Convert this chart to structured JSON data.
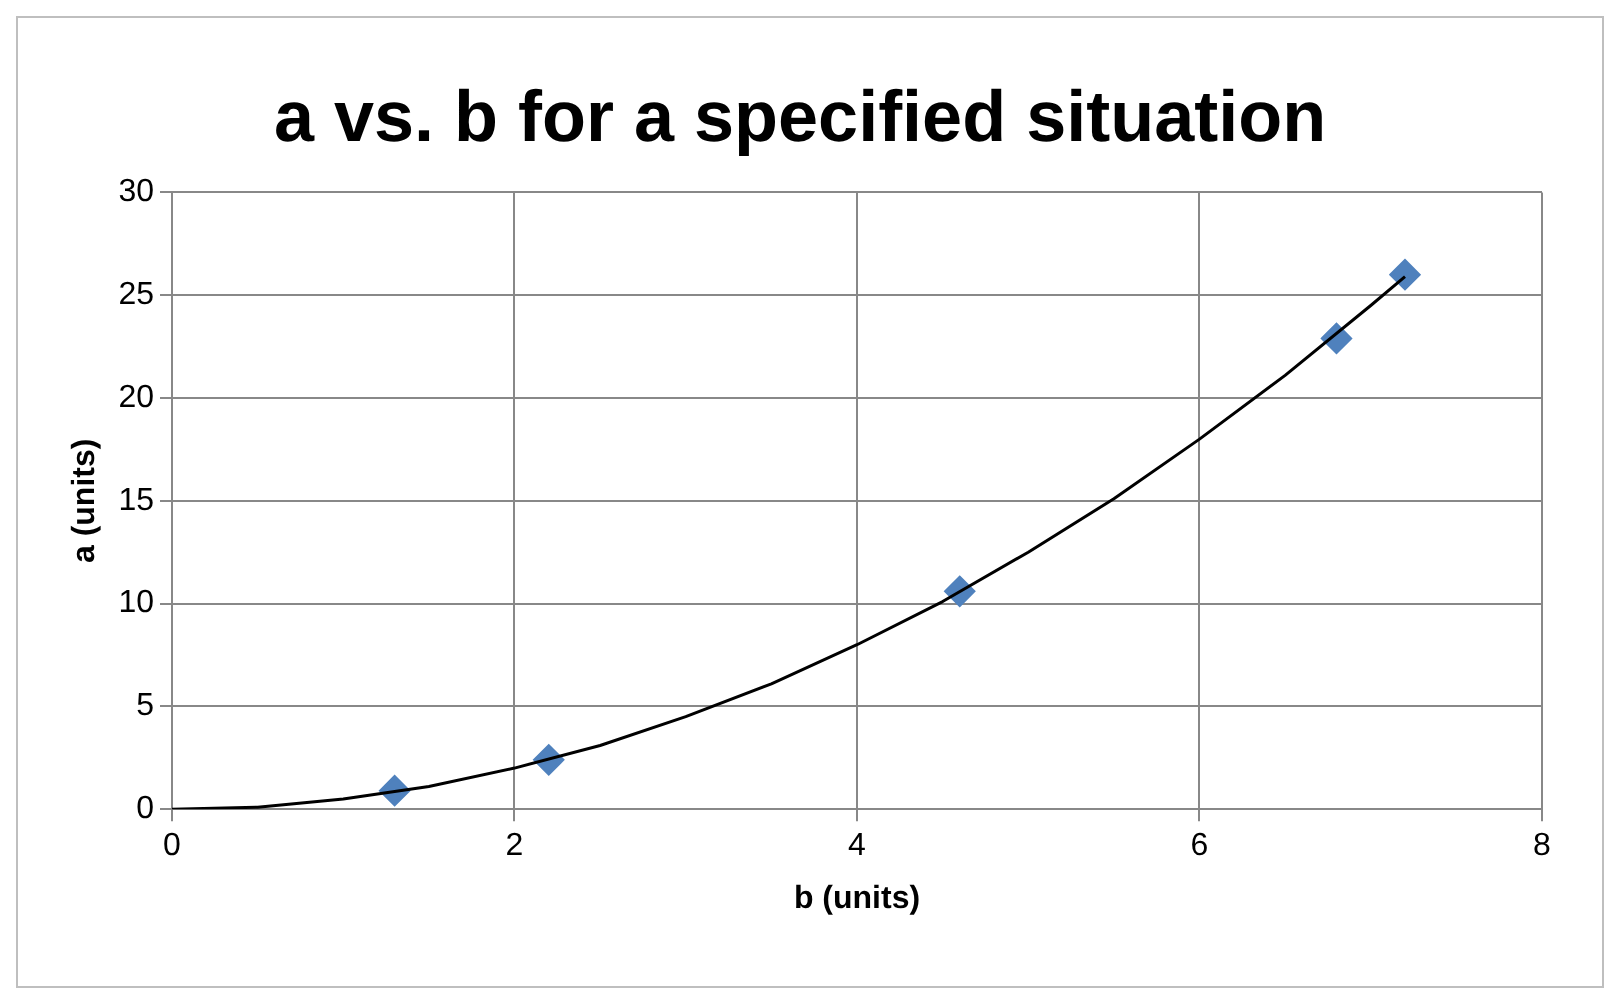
{
  "chart_data": {
    "type": "scatter",
    "title": "a vs. b for a specified situation",
    "xlabel": "b (units)",
    "ylabel": "a (units)",
    "xlim": [
      0,
      8
    ],
    "xticks": [
      0,
      2,
      4,
      6,
      8
    ],
    "ylim": [
      0,
      30
    ],
    "yticks": [
      0,
      5,
      10,
      15,
      20,
      25,
      30
    ],
    "grid": true,
    "legend": false,
    "series": [
      {
        "type": "scatter",
        "color": "#4f81bd",
        "marker": "diamond",
        "x": [
          1.3,
          2.2,
          4.6,
          6.8,
          7.2
        ],
        "values": [
          0.9,
          2.4,
          10.6,
          22.9,
          26
        ]
      },
      {
        "type": "line",
        "color": "#000000",
        "marker": "none",
        "line_style": "solid",
        "x": [
          0,
          0.5,
          1,
          1.5,
          2,
          2.5,
          3,
          3.5,
          4,
          4.5,
          5,
          5.5,
          6,
          6.5,
          7,
          7.2
        ],
        "values": [
          0,
          0.1,
          0.5,
          1.1,
          2,
          3.1,
          4.5,
          6.1,
          8,
          10.1,
          12.5,
          15.1,
          18,
          21.1,
          24.5,
          25.9
        ]
      }
    ]
  }
}
